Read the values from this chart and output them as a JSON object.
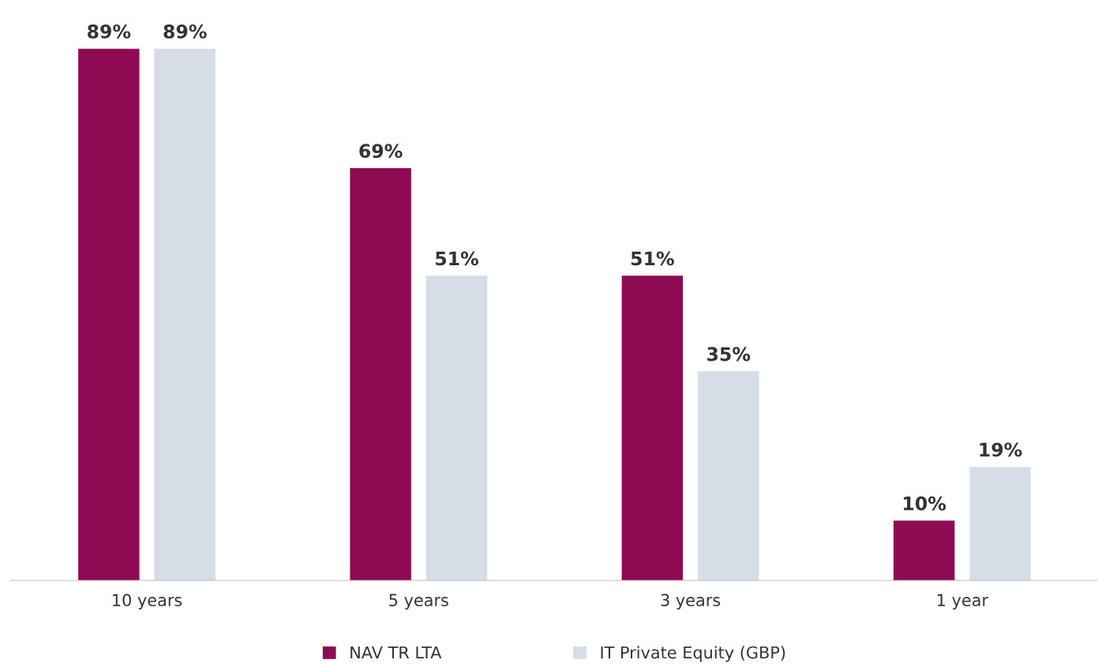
{
  "chart_data": {
    "type": "bar",
    "categories": [
      "10 years",
      "5 years",
      "3 years",
      "1 year"
    ],
    "series": [
      {
        "name": "NAV TR LTA",
        "color": "#8e0a52",
        "values": [
          89,
          69,
          51,
          10
        ],
        "value_labels": [
          "89%",
          "69%",
          "51%",
          "10%"
        ]
      },
      {
        "name": "IT Private Equity (GBP)",
        "color": "#d6dde6",
        "values": [
          89,
          51,
          35,
          19
        ],
        "value_labels": [
          "89%",
          "51%",
          "35%",
          "19%"
        ]
      }
    ],
    "legend": "bottom",
    "grid": false
  }
}
